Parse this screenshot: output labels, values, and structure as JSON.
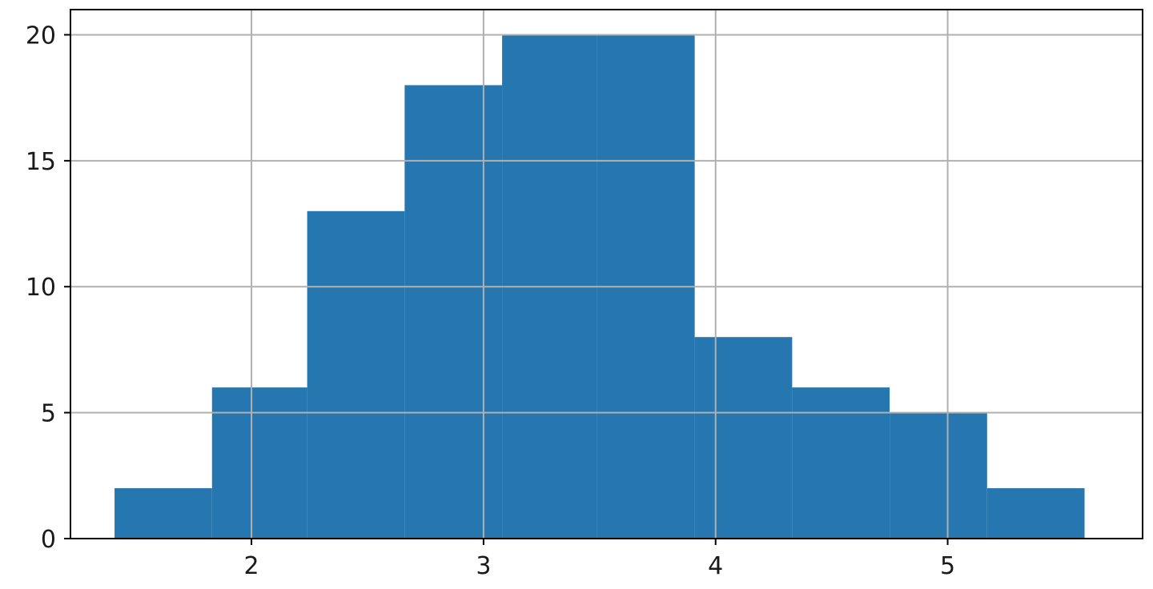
{
  "chart_data": {
    "type": "histogram",
    "title": "",
    "xlabel": "",
    "ylabel": "",
    "xlim": [
      1.22,
      5.84
    ],
    "ylim": [
      0,
      21
    ],
    "grid": true,
    "bar_color": "#2677b0",
    "grid_color": "#b0b0b0",
    "bins": [
      {
        "x0": 1.41,
        "x1": 1.83,
        "count": 2
      },
      {
        "x0": 1.83,
        "x1": 2.24,
        "count": 6
      },
      {
        "x0": 2.24,
        "x1": 2.66,
        "count": 13
      },
      {
        "x0": 2.66,
        "x1": 3.08,
        "count": 18
      },
      {
        "x0": 3.08,
        "x1": 3.49,
        "count": 20
      },
      {
        "x0": 3.49,
        "x1": 3.91,
        "count": 20
      },
      {
        "x0": 3.91,
        "x1": 4.33,
        "count": 8
      },
      {
        "x0": 4.33,
        "x1": 4.75,
        "count": 6
      },
      {
        "x0": 4.75,
        "x1": 5.17,
        "count": 5
      },
      {
        "x0": 5.17,
        "x1": 5.59,
        "count": 2
      }
    ],
    "x_ticks": [
      {
        "value": 2,
        "label": "2"
      },
      {
        "value": 3,
        "label": "3"
      },
      {
        "value": 4,
        "label": "4"
      },
      {
        "value": 5,
        "label": "5"
      }
    ],
    "y_ticks": [
      {
        "value": 0,
        "label": "0"
      },
      {
        "value": 5,
        "label": "5"
      },
      {
        "value": 10,
        "label": "10"
      },
      {
        "value": 15,
        "label": "15"
      },
      {
        "value": 20,
        "label": "20"
      }
    ]
  }
}
